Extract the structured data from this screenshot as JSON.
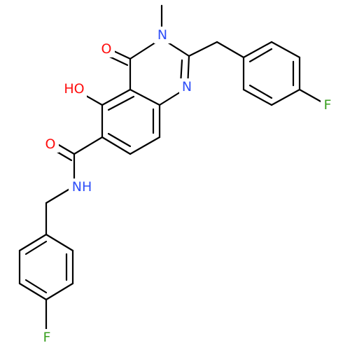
{
  "atoms": [
    "O",
    "N",
    "HO",
    "N",
    "O",
    "NH",
    "F",
    "F"
  ]
}
